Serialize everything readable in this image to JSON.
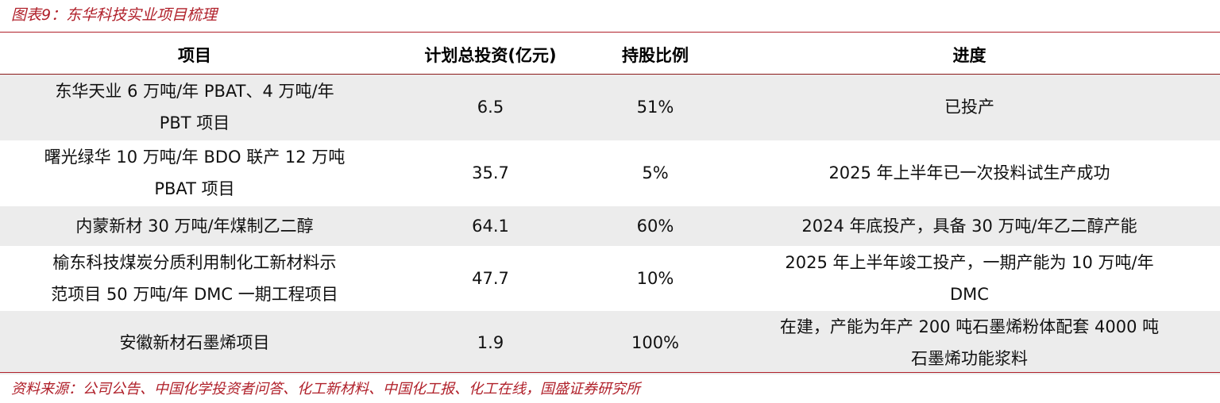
{
  "header": {
    "title": "图表9：东华科技实业项目梳理"
  },
  "table": {
    "columns": [
      "项目",
      "计划总投资(亿元)",
      "持股比例",
      "进度"
    ],
    "rows": [
      [
        [
          "东华天业 6 万吨/年 PBAT、4 万吨/年",
          "PBT 项目"
        ],
        [
          "6.5"
        ],
        [
          "51%"
        ],
        [
          "已投产"
        ]
      ],
      [
        [
          "曙光绿华 10 万吨/年 BDO 联产 12 万吨",
          "PBAT 项目"
        ],
        [
          "35.7"
        ],
        [
          "5%"
        ],
        [
          "2025 年上半年已一次投料试生产成功"
        ]
      ],
      [
        [
          "内蒙新材 30 万吨/年煤制乙二醇"
        ],
        [
          "64.1"
        ],
        [
          "60%"
        ],
        [
          "2024 年底投产，具备 30 万吨/年乙二醇产能"
        ]
      ],
      [
        [
          "榆东科技煤炭分质利用制化工新材料示",
          "范项目 50 万吨/年 DMC 一期工程项目"
        ],
        [
          "47.7"
        ],
        [
          "10%"
        ],
        [
          "2025 年上半年竣工投产，一期产能为 10  万吨/年",
          "DMC"
        ]
      ],
      [
        [
          "安徽新材石墨烯项目"
        ],
        [
          "1.9"
        ],
        [
          "100%"
        ],
        [
          "在建，产能为年产  200  吨石墨烯粉体配套 4000  吨",
          "石墨烯功能浆料"
        ]
      ]
    ]
  },
  "footer": {
    "source": "资料来源：公司公告、中国化学投资者问答、化工新材料、中国化工报、化工在线，国盛证券研究所"
  }
}
